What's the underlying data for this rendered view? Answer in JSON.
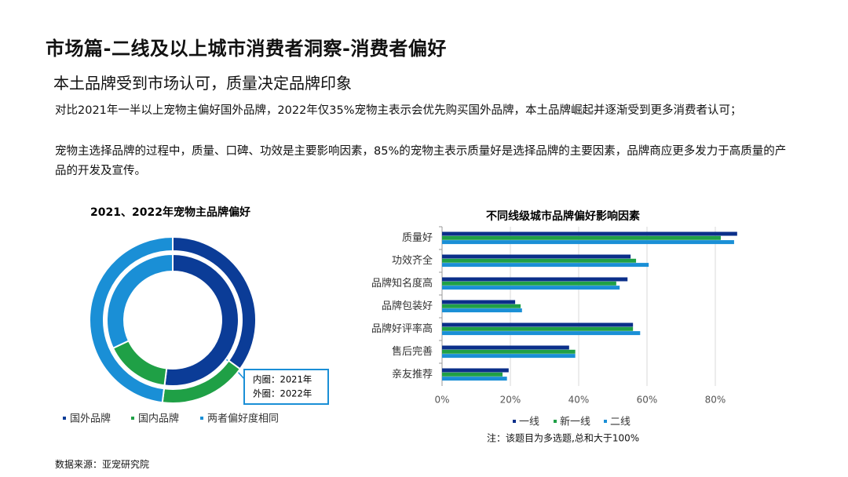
{
  "title": "市场篇-二线及以上城市消费者洞察-消费者偏好",
  "subtitle": "本土品牌受到市场认可，质量决定品牌印象",
  "paragraphs": [
    "对比2021年一半以上宠物主偏好国外品牌，2022年仅35%宠物主表示会优先购买国外品牌，本土品牌崛起并逐渐受到更多消费者认可；",
    "宠物主选择品牌的过程中，质量、口碑、功效是主要影响因素，85%的宠物主表示质量好是选择品牌的主要因素，品牌商应更多发力于高质量的产品的开发及宣传。"
  ],
  "source": "数据来源：亚宠研究院",
  "chart_data": [
    {
      "type": "donut",
      "title": "2021、2022年宠物主品牌偏好",
      "categories": [
        "国外品牌",
        "国内品牌",
        "两者偏好度相同"
      ],
      "colors": [
        "#0b3c97",
        "#1fa046",
        "#1a8fd6"
      ],
      "series": [
        {
          "name": "内圈：2021年",
          "values": [
            52,
            16,
            32
          ]
        },
        {
          "name": "外圈：2022年",
          "values": [
            35,
            17,
            48
          ]
        }
      ]
    },
    {
      "type": "bar",
      "orientation": "horizontal",
      "title": "不同线级城市品牌偏好影响因素",
      "categories": [
        "质量好",
        "功效齐全",
        "品牌知名度高",
        "品牌包装好",
        "品牌好评率高",
        "售后完善",
        "亲友推荐"
      ],
      "series": [
        {
          "name": "一线",
          "color": "#0b2f8a",
          "values": [
            86.4,
            55.2,
            54.3,
            21.4,
            55.9,
            37.2,
            19.5
          ]
        },
        {
          "name": "新一线",
          "color": "#1fa046",
          "values": [
            81.6,
            56.8,
            51,
            23,
            55.9,
            39,
            17.7
          ]
        },
        {
          "name": "二线",
          "color": "#1a8fd6",
          "values": [
            85.5,
            60.5,
            52,
            23.4,
            58,
            39,
            19
          ]
        }
      ],
      "xlim": [
        0,
        90
      ],
      "xticks": [
        {
          "value": 0,
          "label": "0%"
        },
        {
          "value": 20,
          "label": "20%"
        },
        {
          "value": 40,
          "label": "40%"
        },
        {
          "value": 60,
          "label": "60%"
        },
        {
          "value": 80,
          "label": "80%"
        }
      ],
      "grid": true,
      "note": "注：该题目为多选题,总和大于100%"
    }
  ]
}
